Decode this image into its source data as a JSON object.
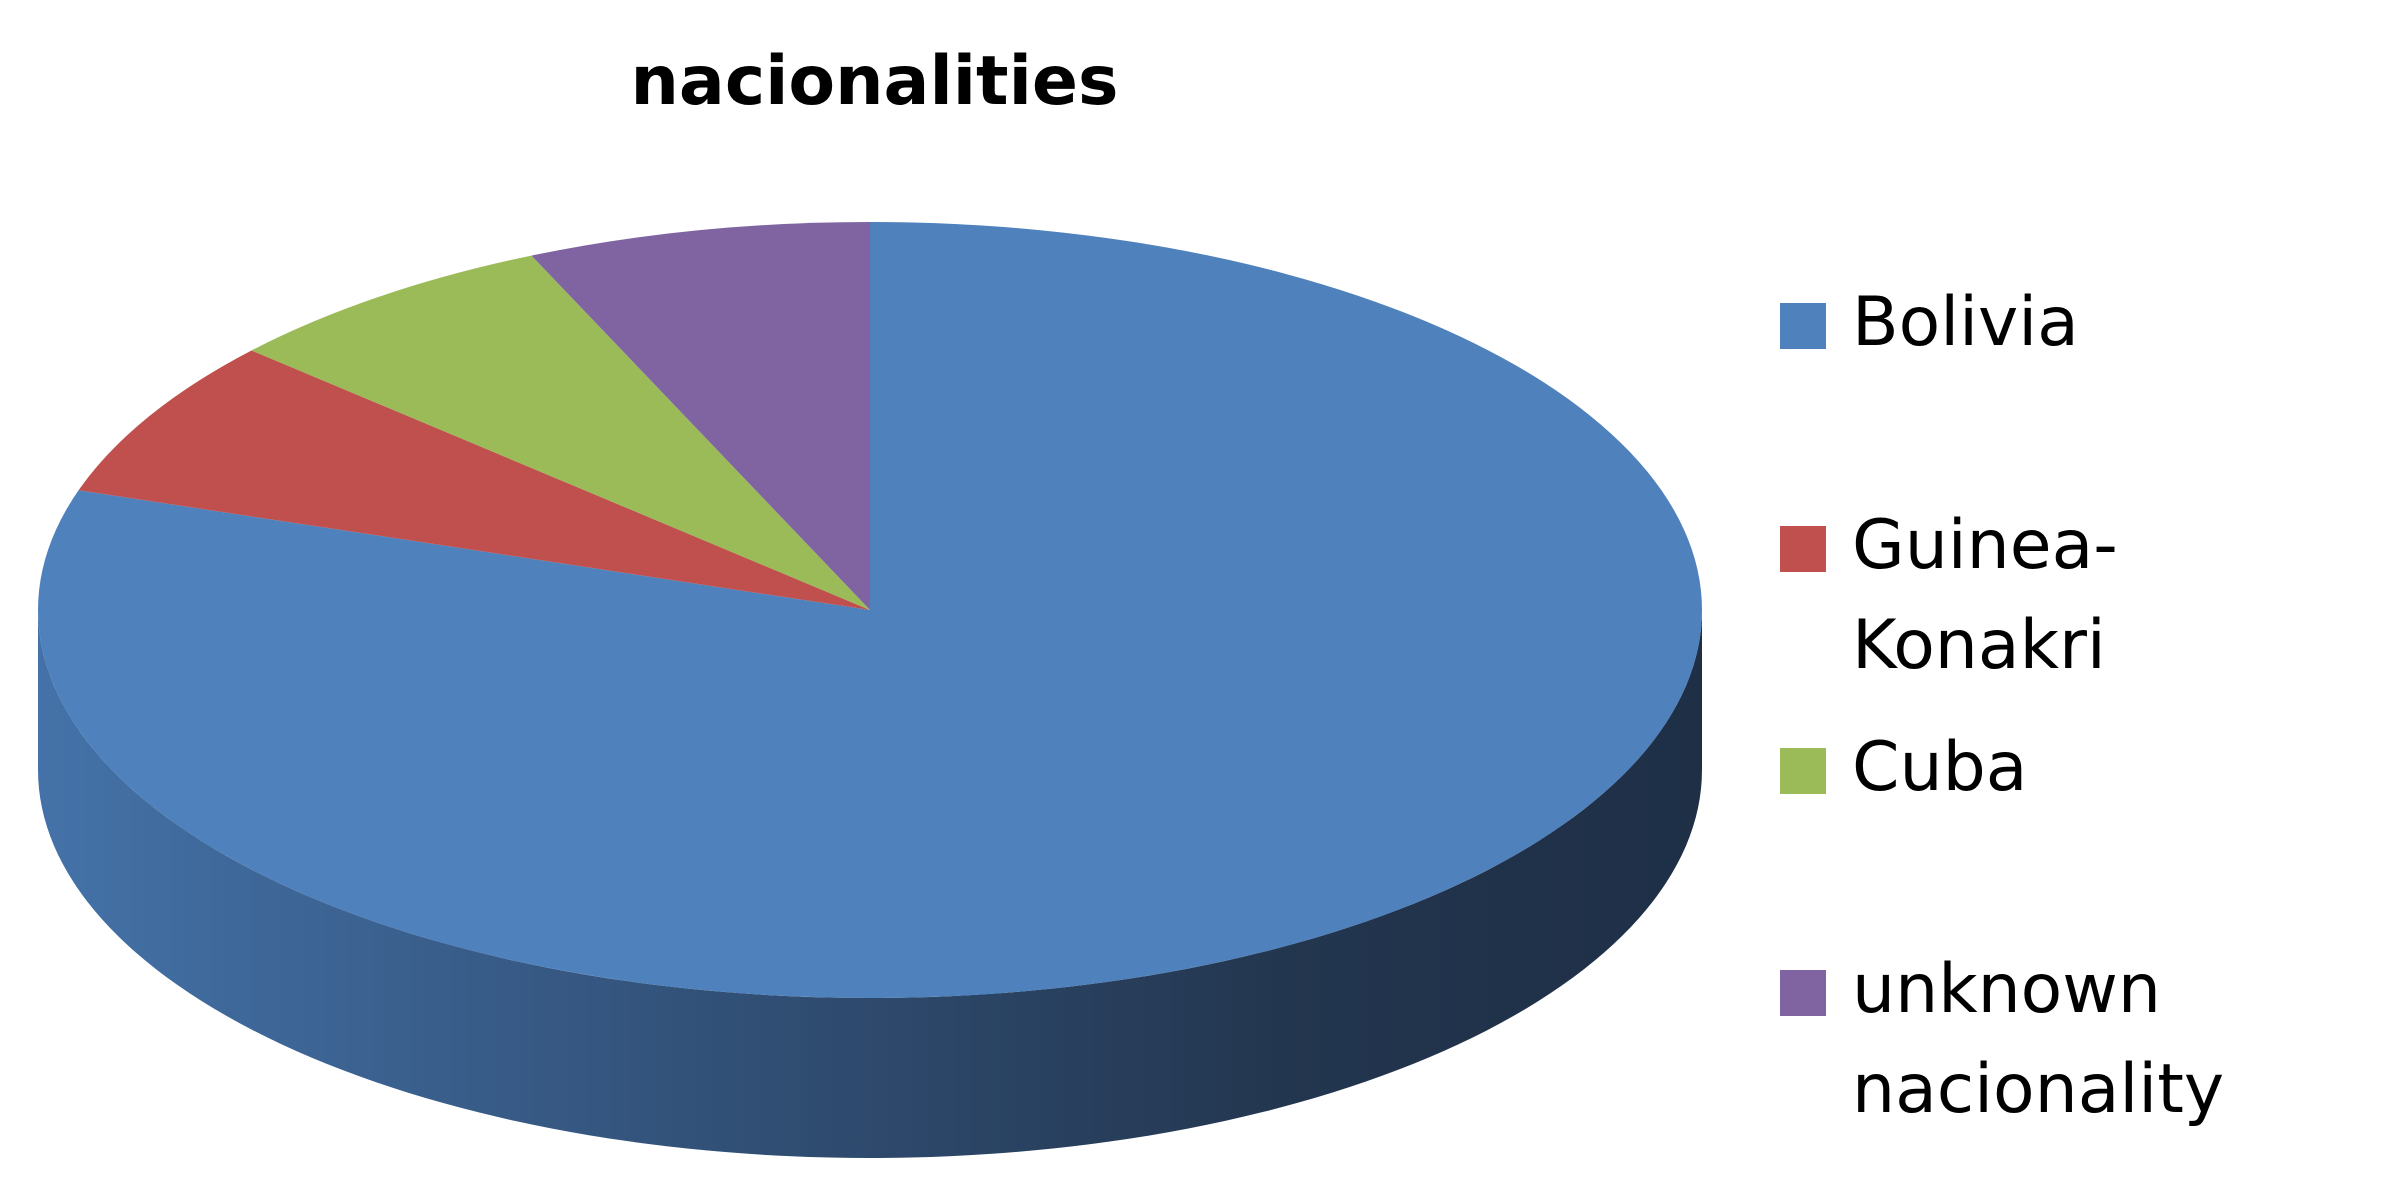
{
  "chart_data": {
    "type": "pie",
    "title": "nacionalities",
    "three_d": true,
    "legend_position": "right",
    "categories": [
      "Bolivia",
      "Guinea-Konakri",
      "Cuba",
      "unknown nacionality"
    ],
    "values": [
      80,
      6.67,
      6.67,
      6.67
    ],
    "colors": [
      "#4F81BD",
      "#C0504D",
      "#9BBB59",
      "#8064A2"
    ]
  }
}
